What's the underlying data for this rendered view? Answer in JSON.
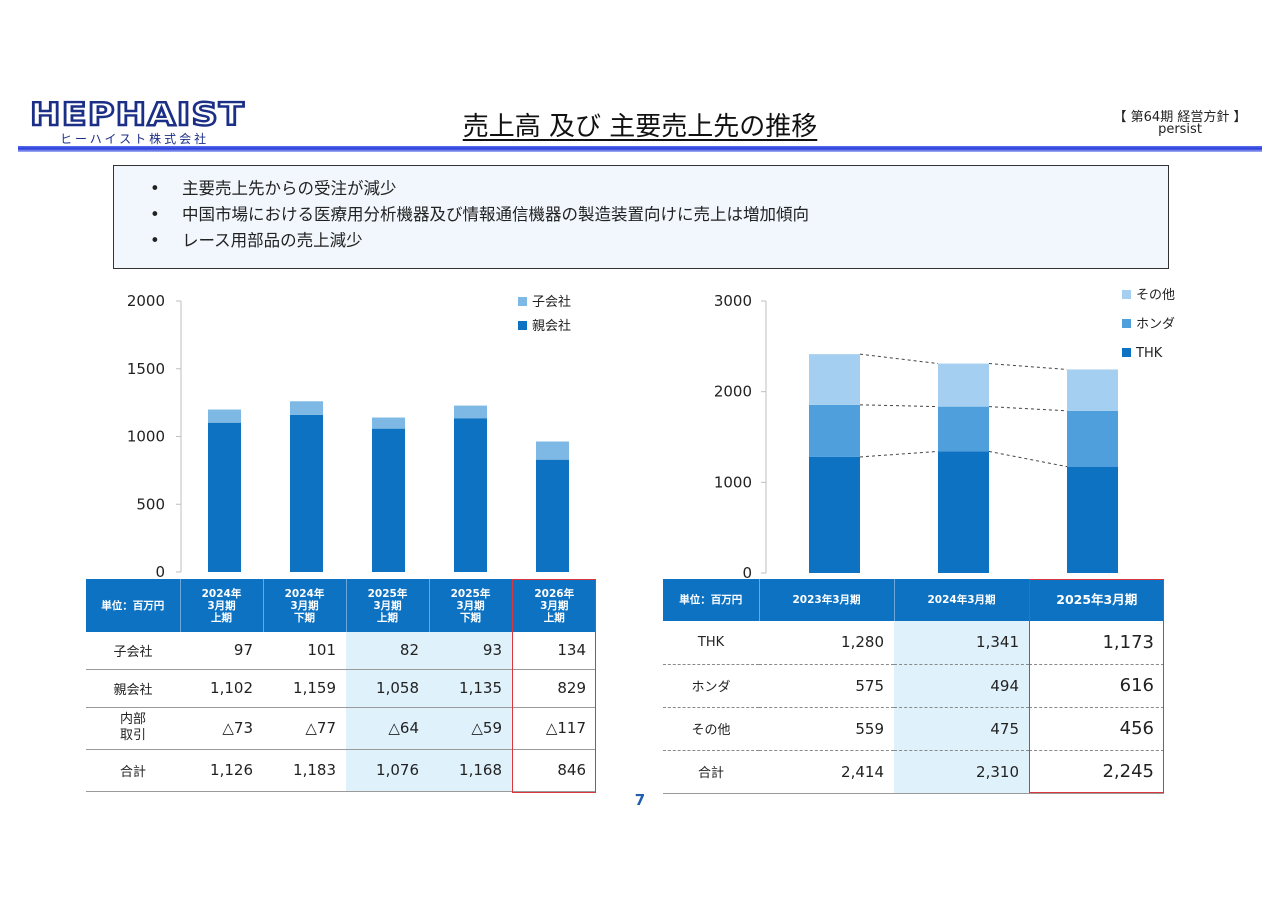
{
  "header": {
    "logo_text": "HEPHAIST",
    "logo_sub": "ヒーハイスト株式会社",
    "title": "売上高 及び 主要売上先の推移",
    "meta_line1": "【 第64期 経営方針 】",
    "meta_line2": "persist"
  },
  "bullets": [
    "主要売上先からの受注が減少",
    "中国市場における医療用分析機器及び情報通信機器の製造装置向けに売上は増加傾向",
    "レース用部品の売上減少"
  ],
  "bullet_mark": "•",
  "colors": {
    "dark_blue": "#0e72c2",
    "light_blue": "#7db9e4",
    "mid_blue": "#4f9fdc",
    "pale_blue": "#a4cff0",
    "highlight": "#dff1fb",
    "red": "#d9363e"
  },
  "chart_data": [
    {
      "type": "bar",
      "stacked": true,
      "categories": [
        "2024年3月期上期",
        "2024年3月期下期",
        "2025年3月期上期",
        "2025年3月期下期",
        "2026年3月期上期"
      ],
      "series": [
        {
          "name": "親会社",
          "values": [
            1102,
            1159,
            1058,
            1135,
            829
          ]
        },
        {
          "name": "子会社",
          "values": [
            97,
            101,
            82,
            93,
            134
          ]
        }
      ],
      "legend": [
        "子会社",
        "親会社"
      ],
      "legend_position": "top-right",
      "yticks": [
        "0",
        "500",
        "1000",
        "1500",
        "2000"
      ],
      "ylim": [
        0,
        2000
      ]
    },
    {
      "type": "bar",
      "stacked": true,
      "categories": [
        "2023年3月期",
        "2024年3月期",
        "2025年3月期"
      ],
      "series": [
        {
          "name": "THK",
          "values": [
            1280,
            1341,
            1173
          ]
        },
        {
          "name": "ホンダ",
          "values": [
            575,
            494,
            616
          ]
        },
        {
          "name": "その他",
          "values": [
            559,
            475,
            456
          ]
        }
      ],
      "legend": [
        "その他",
        "ホンダ",
        "THK"
      ],
      "legend_position": "top-right",
      "yticks": [
        "0",
        "1000",
        "2000",
        "3000"
      ],
      "ylim": [
        0,
        3000
      ],
      "connector_lines": "dashed"
    }
  ],
  "table1": {
    "unit": "単位：百万円",
    "columns": [
      {
        "l1": "2024年",
        "l2": "3月期",
        "l3": "上期"
      },
      {
        "l1": "2024年",
        "l2": "3月期",
        "l3": "下期"
      },
      {
        "l1": "2025年",
        "l2": "3月期",
        "l3": "上期"
      },
      {
        "l1": "2025年",
        "l2": "3月期",
        "l3": "下期"
      },
      {
        "l1": "2026年",
        "l2": "3月期",
        "l3": "上期"
      }
    ],
    "rows": [
      {
        "label": "子会社",
        "label2": "",
        "values": [
          "97",
          "101",
          "82",
          "93",
          "134"
        ]
      },
      {
        "label": "親会社",
        "label2": "",
        "values": [
          "1,102",
          "1,159",
          "1,058",
          "1,135",
          "829"
        ]
      },
      {
        "label": "内部",
        "label2": "取引",
        "values": [
          "△73",
          "△77",
          "△64",
          "△59",
          "△117"
        ]
      },
      {
        "label": "合計",
        "label2": "",
        "values": [
          "1,126",
          "1,183",
          "1,076",
          "1,168",
          "846"
        ]
      }
    ]
  },
  "table2": {
    "unit": "単位：百万円",
    "columns": [
      "2023年3月期",
      "2024年3月期",
      "2025年3月期"
    ],
    "rows": [
      {
        "label": "THK",
        "values": [
          "1,280",
          "1,341",
          "1,173"
        ]
      },
      {
        "label": "ホンダ",
        "values": [
          "575",
          "494",
          "616"
        ]
      },
      {
        "label": "その他",
        "values": [
          "559",
          "475",
          "456"
        ]
      },
      {
        "label": "合計",
        "values": [
          "2,414",
          "2,310",
          "2,245"
        ]
      }
    ]
  },
  "page_number": "7"
}
